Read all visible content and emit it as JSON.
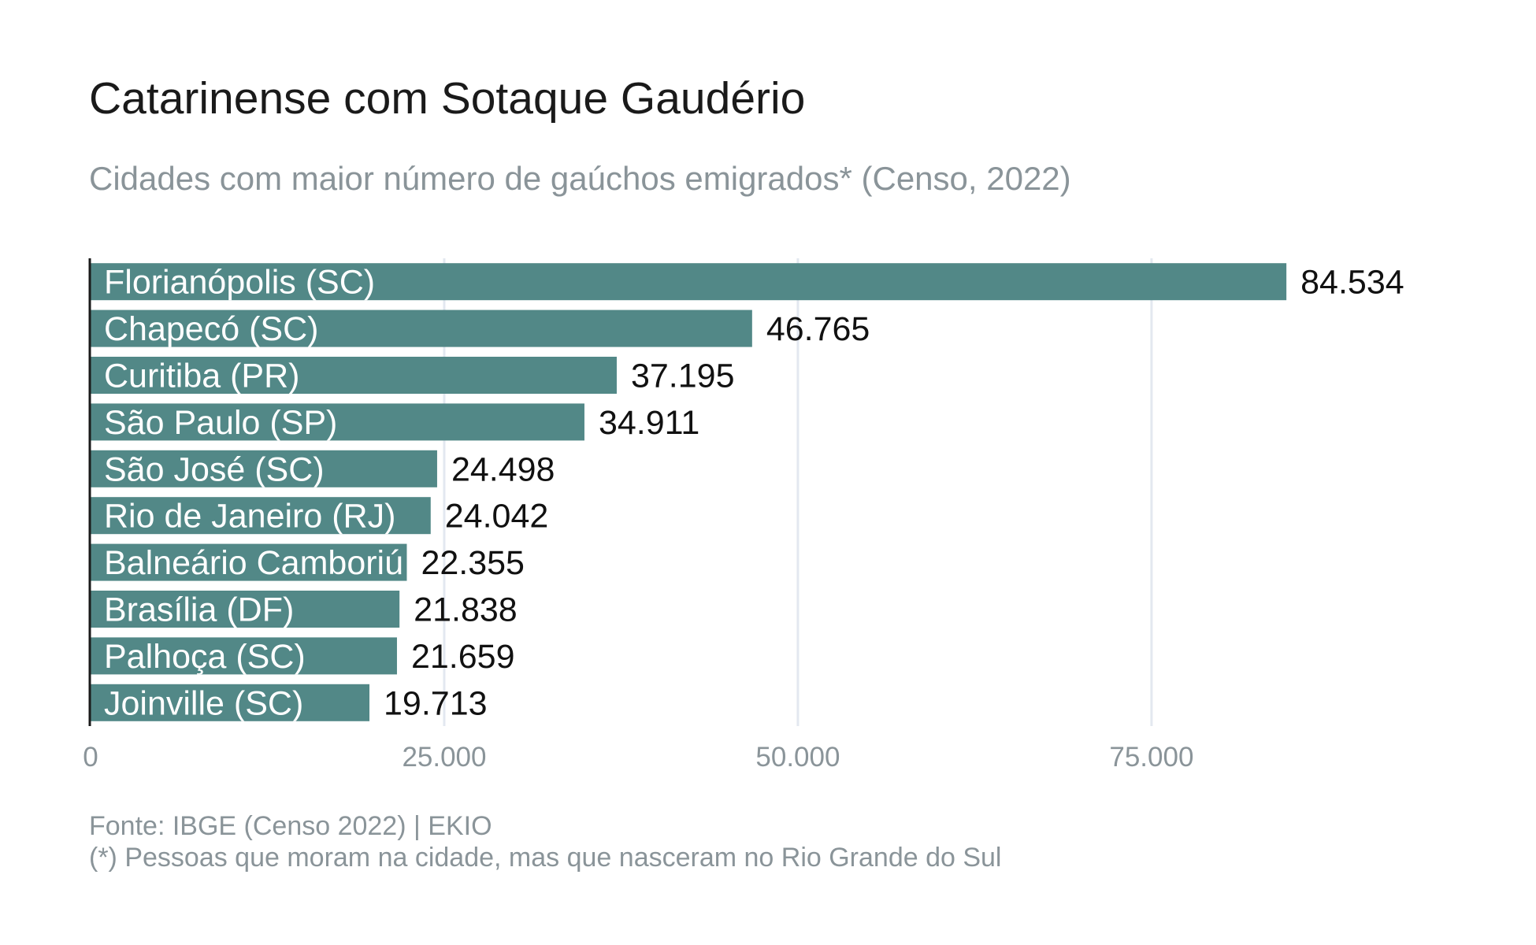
{
  "title": "Catarinense com Sotaque Gaudério",
  "subtitle": "Cidades com maior número de gaúchos emigrados* (Censo, 2022)",
  "caption": {
    "source": "Fonte: IBGE (Censo 2022) | EKIO",
    "note": "(*) Pessoas que moram na cidade, mas que nasceram no Rio Grande do Sul"
  },
  "colors": {
    "bar": "#528887",
    "bar_label": "#ffffff",
    "value_label": "#111111",
    "grid": "#e3e8f0",
    "axis": "#1a1a1a",
    "tick_label": "#8a9499"
  },
  "chart_data": {
    "type": "bar",
    "orientation": "horizontal",
    "categories": [
      "Florianópolis (SC)",
      "Chapecó (SC)",
      "Curitiba (PR)",
      "São Paulo (SP)",
      "São José (SC)",
      "Rio de Janeiro (RJ)",
      "Balneário Camboriú (SC)",
      "Brasília (DF)",
      "Palhoça (SC)",
      "Joinville (SC)"
    ],
    "values": [
      84534,
      46765,
      37195,
      34911,
      24498,
      24042,
      22355,
      21838,
      21659,
      19713
    ],
    "value_labels": [
      "84.534",
      "46.765",
      "37.195",
      "34.911",
      "24.498",
      "24.042",
      "22.355",
      "21.838",
      "21.659",
      "19.713"
    ],
    "xlim": [
      0,
      97000
    ],
    "xticks": [
      0,
      25000,
      50000,
      75000
    ],
    "xtick_labels": [
      "0",
      "25.000",
      "50.000",
      "75.000"
    ],
    "grid": "vertical",
    "legend": "none"
  }
}
